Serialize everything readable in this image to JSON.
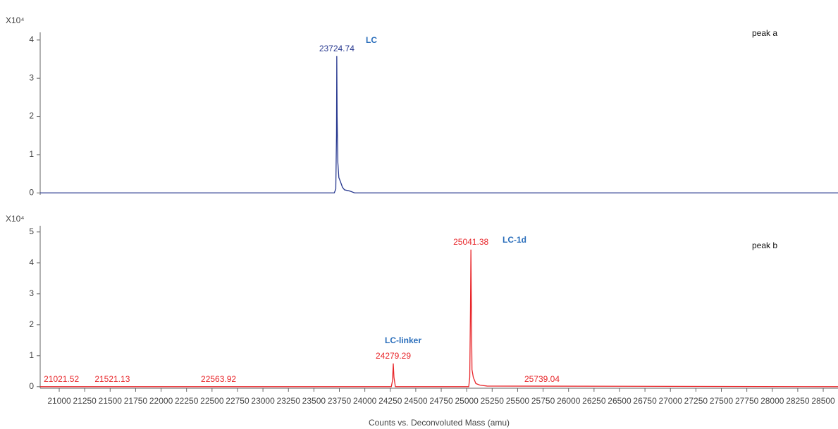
{
  "chart_data": [
    {
      "type": "line",
      "ylabel": "X10⁴",
      "annotations": [
        "LC",
        "peak a"
      ],
      "x": [
        20813,
        23700,
        23715,
        23722,
        23724.74,
        23728,
        23735,
        23745,
        23760,
        23780,
        23800,
        23850,
        23900,
        28645
      ],
      "values": [
        0,
        0,
        0.1,
        1.5,
        3.58,
        2.0,
        0.8,
        0.4,
        0.3,
        0.15,
        0.08,
        0.05,
        0,
        0
      ],
      "color": "#27388f",
      "annotated_peaks": [
        23724.74
      ],
      "xlim": [
        20813,
        28645
      ],
      "ylim": [
        -0.05,
        4.2
      ],
      "yticks": [
        0,
        1,
        2,
        3,
        4
      ]
    },
    {
      "type": "line",
      "ylabel": "X10⁴",
      "annotations": [
        "LC-linker",
        "LC-1d",
        "peak b"
      ],
      "x": [
        20813,
        24260,
        24272,
        24279.29,
        24286,
        24300,
        25020,
        25030,
        25037,
        25041.38,
        25045,
        25052,
        25065,
        25090,
        25130,
        25200,
        28645
      ],
      "values": [
        0,
        0,
        0.2,
        0.75,
        0.3,
        0,
        0,
        0.3,
        2.5,
        4.43,
        3.0,
        0.55,
        0.3,
        0.1,
        0.05,
        0.02,
        0
      ],
      "color": "#e8262a",
      "annotated_peaks": [
        21021.52,
        21521.13,
        22563.92,
        24279.29,
        25041.38,
        25739.04
      ],
      "xlim": [
        20813,
        28645
      ],
      "ylim": [
        -0.05,
        5.2
      ],
      "yticks": [
        0,
        1,
        2,
        3,
        4,
        5
      ],
      "xticks": [
        21000,
        21250,
        21500,
        21750,
        22000,
        22250,
        22500,
        22750,
        23000,
        23250,
        23500,
        23750,
        24000,
        24250,
        24500,
        24750,
        25000,
        25250,
        25500,
        25750,
        26000,
        26250,
        26500,
        26750,
        27000,
        27250,
        27500,
        27750,
        28000,
        28250,
        28500
      ],
      "xlabel": "Counts vs. Deconvoluted Mass (amu)"
    }
  ]
}
